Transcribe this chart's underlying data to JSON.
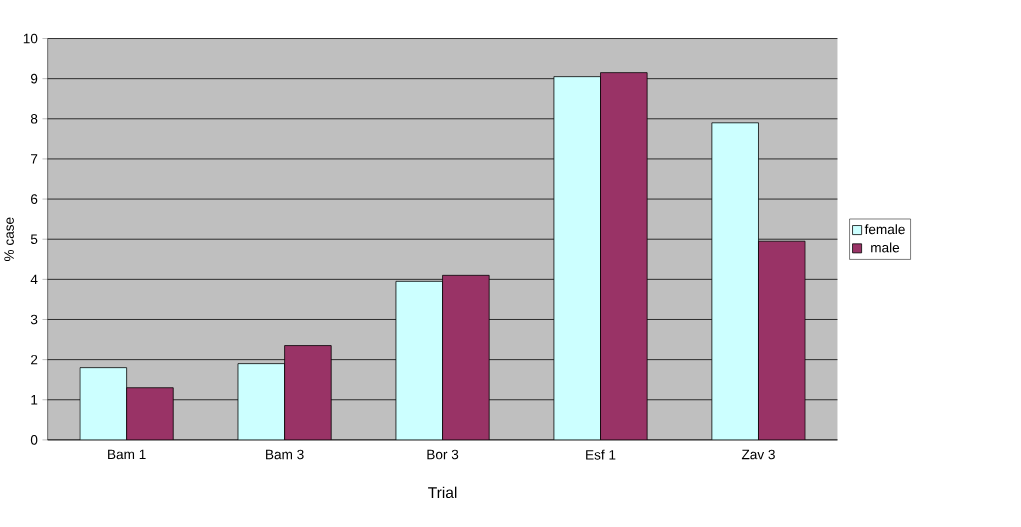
{
  "chart_data": {
    "type": "bar",
    "xlabel": "Trial",
    "ylabel": "% case",
    "categories": [
      "Bam 1",
      "Bam 3",
      "Bor 3",
      "Esf 1",
      "Zav 3"
    ],
    "series": [
      {
        "name": "female",
        "color": "#ccffff",
        "values": [
          1.8,
          1.9,
          3.95,
          9.05,
          7.9
        ]
      },
      {
        "name": "male",
        "color": "#993366",
        "values": [
          1.3,
          2.35,
          4.1,
          9.15,
          4.95
        ]
      }
    ],
    "ylim": [
      0,
      10
    ],
    "yticks": [
      0,
      1,
      2,
      3,
      4,
      5,
      6,
      7,
      8,
      9,
      10
    ],
    "grid": "y",
    "legend": "right"
  }
}
